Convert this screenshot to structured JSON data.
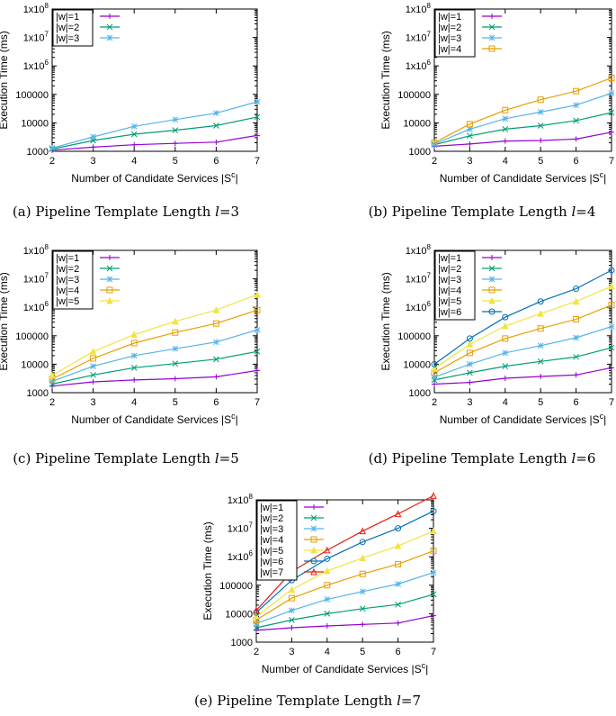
{
  "chart_data": [
    {
      "id": "a",
      "type": "line",
      "caption": "(a) Pipeline Template Length ",
      "caption_var": "l",
      "caption_eq": "=3",
      "xlabel": "Number of Candidate Services |S",
      "xlabel_sup": "c",
      "xlabel_end": "|",
      "ylabel": "Execution Time (ms)",
      "x": [
        2,
        3,
        4,
        5,
        6,
        7
      ],
      "yscale": "log",
      "ylim": [
        1000,
        100000000
      ],
      "yticks": [
        "1000",
        "10000",
        "100000",
        "1x10^6",
        "1x10^7",
        "1x10^8"
      ],
      "legend_position": "top-left",
      "series": [
        {
          "name": "|w|=1",
          "color": "#9400d3",
          "marker": "plus",
          "values": [
            1100,
            1400,
            1700,
            1900,
            2100,
            3600
          ]
        },
        {
          "name": "|w|=2",
          "color": "#009e73",
          "marker": "cross",
          "values": [
            1200,
            2400,
            4000,
            5500,
            8000,
            16000
          ]
        },
        {
          "name": "|w|=3",
          "color": "#56b4e9",
          "marker": "star",
          "values": [
            1300,
            3200,
            7500,
            13000,
            22000,
            55000
          ]
        }
      ]
    },
    {
      "id": "b",
      "type": "line",
      "caption": "(b) Pipeline Template Length ",
      "caption_var": "l",
      "caption_eq": "=4",
      "xlabel": "Number of Candidate Services |S",
      "xlabel_sup": "c",
      "xlabel_end": "|",
      "ylabel": "Execution Time (ms)",
      "x": [
        2,
        3,
        4,
        5,
        6,
        7
      ],
      "yscale": "log",
      "ylim": [
        1000,
        100000000
      ],
      "yticks": [
        "1000",
        "10000",
        "100000",
        "1x10^6",
        "1x10^7",
        "1x10^8"
      ],
      "legend_position": "top-left",
      "series": [
        {
          "name": "|w|=1",
          "color": "#9400d3",
          "marker": "plus",
          "values": [
            1500,
            1800,
            2300,
            2400,
            2700,
            4700
          ]
        },
        {
          "name": "|w|=2",
          "color": "#009e73",
          "marker": "cross",
          "values": [
            1700,
            3500,
            6000,
            8000,
            12000,
            23000
          ]
        },
        {
          "name": "|w|=3",
          "color": "#56b4e9",
          "marker": "star",
          "values": [
            1800,
            6000,
            14000,
            24000,
            42000,
            110000
          ]
        },
        {
          "name": "|w|=4",
          "color": "#e69f00",
          "marker": "box",
          "values": [
            2000,
            9000,
            28000,
            65000,
            130000,
            380000
          ]
        }
      ]
    },
    {
      "id": "c",
      "type": "line",
      "caption": "(c) Pipeline Template Length ",
      "caption_var": "l",
      "caption_eq": "=5",
      "xlabel": "Number of Candidate Services |S",
      "xlabel_sup": "c",
      "xlabel_end": "|",
      "ylabel": "Execution Time (ms)",
      "x": [
        2,
        3,
        4,
        5,
        6,
        7
      ],
      "yscale": "log",
      "ylim": [
        1000,
        100000000
      ],
      "yticks": [
        "1000",
        "10000",
        "100000",
        "1x10^6",
        "1x10^7",
        "1x10^8"
      ],
      "legend_position": "top-left",
      "series": [
        {
          "name": "|w|=1",
          "color": "#9400d3",
          "marker": "plus",
          "values": [
            1700,
            2400,
            2800,
            3100,
            3600,
            6000
          ]
        },
        {
          "name": "|w|=2",
          "color": "#009e73",
          "marker": "cross",
          "values": [
            2000,
            4200,
            7500,
            10500,
            15000,
            28000
          ]
        },
        {
          "name": "|w|=3",
          "color": "#56b4e9",
          "marker": "star",
          "values": [
            2500,
            8500,
            20000,
            35000,
            60000,
            160000
          ]
        },
        {
          "name": "|w|=4",
          "color": "#e69f00",
          "marker": "box",
          "values": [
            3000,
            16000,
            55000,
            130000,
            270000,
            800000
          ]
        },
        {
          "name": "|w|=5",
          "color": "#f0e442",
          "marker": "tri",
          "values": [
            4000,
            28000,
            110000,
            320000,
            800000,
            2800000
          ]
        }
      ]
    },
    {
      "id": "d",
      "type": "line",
      "caption": "(d) Pipeline Template Length ",
      "caption_var": "l",
      "caption_eq": "=6",
      "xlabel": "Number of Candidate Services |S",
      "xlabel_sup": "c",
      "xlabel_end": "|",
      "ylabel": "Execution Time (ms)",
      "x": [
        2,
        3,
        4,
        5,
        6,
        7
      ],
      "yscale": "log",
      "ylim": [
        1000,
        100000000
      ],
      "yticks": [
        "1000",
        "10000",
        "100000",
        "1x10^6",
        "1x10^7",
        "1x10^8"
      ],
      "legend_position": "top-left",
      "series": [
        {
          "name": "|w|=1",
          "color": "#9400d3",
          "marker": "plus",
          "values": [
            2000,
            2300,
            3200,
            3700,
            4200,
            7500
          ]
        },
        {
          "name": "|w|=2",
          "color": "#009e73",
          "marker": "cross",
          "values": [
            2800,
            5000,
            8500,
            12500,
            18000,
            38000
          ]
        },
        {
          "name": "|w|=3",
          "color": "#56b4e9",
          "marker": "star",
          "values": [
            3500,
            10000,
            25000,
            45000,
            85000,
            210000
          ]
        },
        {
          "name": "|w|=4",
          "color": "#e69f00",
          "marker": "box",
          "values": [
            5000,
            25000,
            80000,
            180000,
            380000,
            1200000
          ]
        },
        {
          "name": "|w|=5",
          "color": "#f0e442",
          "marker": "tri",
          "values": [
            7000,
            50000,
            220000,
            600000,
            1600000,
            5500000
          ]
        },
        {
          "name": "|w|=6",
          "color": "#0072b2",
          "marker": "circle",
          "values": [
            10000,
            80000,
            450000,
            1600000,
            4500000,
            20000000
          ]
        }
      ]
    },
    {
      "id": "e",
      "type": "line",
      "caption": "(e) Pipeline Template Length ",
      "caption_var": "l",
      "caption_eq": "=7",
      "xlabel": "Number of Candidate Services |S",
      "xlabel_sup": "c",
      "xlabel_end": "|",
      "ylabel": "Execution Time (ms)",
      "x": [
        2,
        3,
        4,
        5,
        6,
        7
      ],
      "yscale": "log",
      "ylim": [
        1000,
        100000000
      ],
      "yticks": [
        "1000",
        "10000",
        "100000",
        "1x10^6",
        "1x10^7",
        "1x10^8"
      ],
      "legend_position": "top-left",
      "series": [
        {
          "name": "|w|=1",
          "color": "#9400d3",
          "marker": "plus",
          "values": [
            2600,
            3200,
            3700,
            4200,
            4700,
            8500
          ]
        },
        {
          "name": "|w|=2",
          "color": "#009e73",
          "marker": "cross",
          "values": [
            3200,
            6000,
            10000,
            15000,
            21000,
            48000
          ]
        },
        {
          "name": "|w|=3",
          "color": "#56b4e9",
          "marker": "star",
          "values": [
            4500,
            13000,
            32000,
            60000,
            110000,
            280000
          ]
        },
        {
          "name": "|w|=4",
          "color": "#e69f00",
          "marker": "box",
          "values": [
            6000,
            35000,
            100000,
            250000,
            550000,
            1600000
          ]
        },
        {
          "name": "|w|=5",
          "color": "#f0e442",
          "marker": "tri",
          "values": [
            8000,
            70000,
            320000,
            900000,
            2400000,
            8000000
          ]
        },
        {
          "name": "|w|=6",
          "color": "#0072b2",
          "marker": "circle",
          "values": [
            11000,
            150000,
            850000,
            3300000,
            10000000,
            40000000
          ]
        },
        {
          "name": "|w|=7",
          "color": "#e51e10",
          "marker": "tri-up",
          "values": [
            13000,
            300000,
            1700000,
            8000000,
            32000000,
            140000000
          ]
        }
      ]
    }
  ]
}
